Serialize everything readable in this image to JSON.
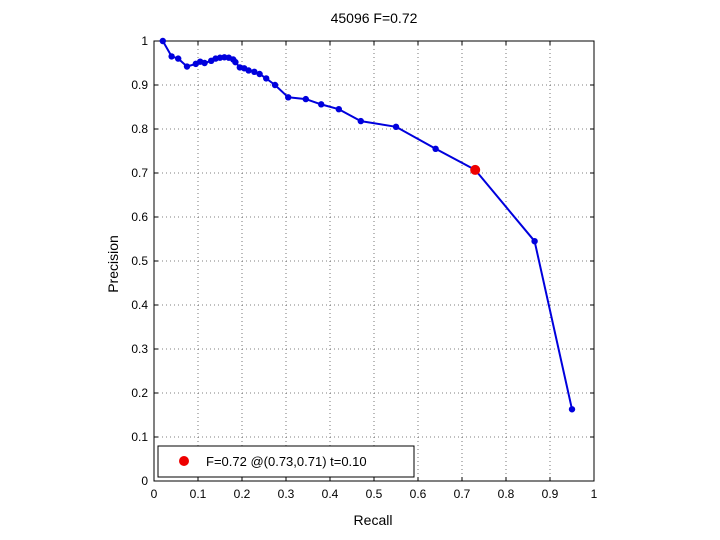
{
  "chart_data": {
    "type": "line",
    "title": "45096 F=0.72",
    "xlabel": "Recall",
    "ylabel": "Precision",
    "xlim": [
      0,
      1
    ],
    "ylim": [
      0,
      1
    ],
    "grid": true,
    "x_ticks": [
      "0",
      "0.1",
      "0.2",
      "0.3",
      "0.4",
      "0.5",
      "0.6",
      "0.7",
      "0.8",
      "0.9",
      "1"
    ],
    "y_ticks": [
      "0",
      "0.1",
      "0.2",
      "0.3",
      "0.4",
      "0.5",
      "0.6",
      "0.7",
      "0.8",
      "0.9",
      "1"
    ],
    "series": [
      {
        "color": "#0000dd",
        "x": [
          0.02,
          0.04,
          0.055,
          0.075,
          0.095,
          0.105,
          0.115,
          0.13,
          0.14,
          0.15,
          0.16,
          0.17,
          0.18,
          0.185,
          0.195,
          0.205,
          0.215,
          0.228,
          0.24,
          0.255,
          0.275,
          0.305,
          0.345,
          0.38,
          0.42,
          0.47,
          0.55,
          0.64,
          0.73,
          0.865,
          0.95
        ],
        "y": [
          1.0,
          0.965,
          0.96,
          0.942,
          0.948,
          0.953,
          0.95,
          0.955,
          0.96,
          0.962,
          0.963,
          0.962,
          0.958,
          0.952,
          0.94,
          0.938,
          0.933,
          0.93,
          0.925,
          0.915,
          0.9,
          0.872,
          0.868,
          0.856,
          0.845,
          0.818,
          0.805,
          0.755,
          0.707,
          0.545,
          0.163
        ]
      }
    ],
    "highlight": {
      "x": 0.73,
      "y": 0.707,
      "color": "#ee0000"
    },
    "legend": {
      "placement": "bottom-left",
      "text": "F=0.72 @(0.73,0.71) t=0.10"
    }
  }
}
